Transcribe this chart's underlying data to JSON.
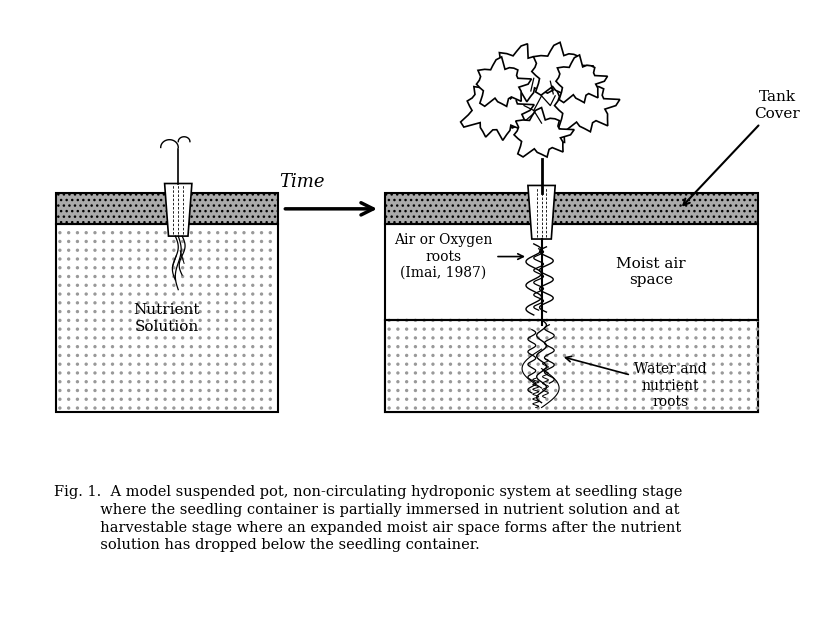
{
  "fig_width": 8.4,
  "fig_height": 6.3,
  "dpi": 100,
  "background_color": "#ffffff",
  "caption_line1": "Fig. 1.  A model suspended pot, non-circulating hydroponic system at seedling stage",
  "caption_line2": "          where the seedling container is partially immersed in nutrient solution and at",
  "caption_line3": "          harvestable stage where an expanded moist air space forms after the nutrient",
  "caption_line4": "          solution has dropped below the seedling container.",
  "label_Time": "Time",
  "label_NutrientSolution": "Nutrient\nSolution",
  "label_AirOxygen": "Air or Oxygen\nroots\n(Imai, 1987)",
  "label_MoistAir": "Moist air\nspace",
  "label_WaterNutrient": "Water and\nnutrient\nroots",
  "label_TankCover": "Tank\nCover",
  "cover_color": "#888888",
  "tank_dot_color": "#dddddd",
  "black": "#000000",
  "white": "#ffffff"
}
